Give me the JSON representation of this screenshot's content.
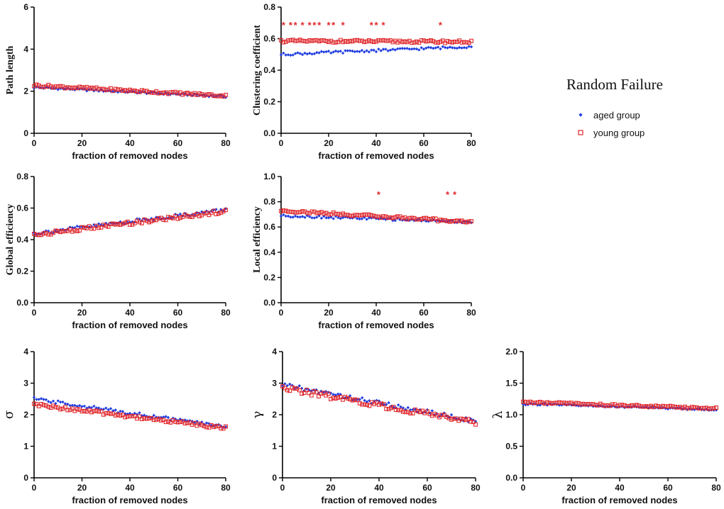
{
  "figure": {
    "legend": {
      "title": "Random Failure",
      "entries": [
        {
          "label": "aged group",
          "color": "#1f3de0",
          "marker": "diamond"
        },
        {
          "label": "young group",
          "color": "#e0262a",
          "marker": "square"
        }
      ]
    }
  },
  "chart_data": [
    {
      "type": "scatter",
      "id": "path-length",
      "title": "",
      "xlabel": "fraction of removed nodes",
      "ylabel": "Path length",
      "xlim": [
        0,
        80
      ],
      "ylim": [
        0,
        6
      ],
      "xticks": [
        0,
        20,
        40,
        60,
        80
      ],
      "yticks": [
        0,
        2,
        4,
        6
      ],
      "series": [
        {
          "name": "aged group",
          "start": 2.18,
          "end": 1.75,
          "noise": 0.05
        },
        {
          "name": "young group",
          "start": 2.28,
          "end": 1.78,
          "noise": 0.06
        }
      ],
      "significance_x": []
    },
    {
      "type": "scatter",
      "id": "clustering-coefficient",
      "title": "",
      "xlabel": "fraction of removed nodes",
      "ylabel": "Clustering coefficient",
      "xlim": [
        0,
        80
      ],
      "ylim": [
        0,
        0.8
      ],
      "xticks": [
        0,
        20,
        40,
        60,
        80
      ],
      "yticks": [
        0.0,
        0.2,
        0.4,
        0.6,
        0.8
      ],
      "series": [
        {
          "name": "aged group",
          "start": 0.5,
          "end": 0.55,
          "noise": 0.008
        },
        {
          "name": "young group",
          "start": 0.585,
          "end": 0.58,
          "noise": 0.008
        }
      ],
      "significance_x": [
        1,
        4,
        6,
        9,
        12,
        14,
        16,
        20,
        22,
        26,
        38,
        40,
        43,
        67
      ]
    },
    {
      "type": "scatter",
      "id": "global-efficiency",
      "title": "",
      "xlabel": "fraction of removed nodes",
      "ylabel": "Global efficiency",
      "xlim": [
        0,
        80
      ],
      "ylim": [
        0,
        0.8
      ],
      "xticks": [
        0,
        20,
        40,
        60,
        80
      ],
      "yticks": [
        0.0,
        0.2,
        0.4,
        0.6,
        0.8
      ],
      "series": [
        {
          "name": "aged group",
          "start": 0.44,
          "end": 0.59,
          "noise": 0.012
        },
        {
          "name": "young group",
          "start": 0.43,
          "end": 0.58,
          "noise": 0.012
        }
      ],
      "significance_x": []
    },
    {
      "type": "scatter",
      "id": "local-efficiency",
      "title": "",
      "xlabel": "fraction of removed nodes",
      "ylabel": "Local efficiency",
      "xlim": [
        0,
        80
      ],
      "ylim": [
        0,
        1.0
      ],
      "xticks": [
        0,
        20,
        40,
        60,
        80
      ],
      "yticks": [
        0.0,
        0.2,
        0.4,
        0.6,
        0.8,
        1.0
      ],
      "series": [
        {
          "name": "aged group",
          "start": 0.69,
          "end": 0.64,
          "noise": 0.01
        },
        {
          "name": "young group",
          "start": 0.73,
          "end": 0.64,
          "noise": 0.01
        }
      ],
      "significance_x": [
        41,
        70,
        73
      ]
    },
    {
      "type": "scatter",
      "id": "sigma",
      "title": "",
      "xlabel": "fraction of removed nodes",
      "ylabel": "σ",
      "xlim": [
        0,
        80
      ],
      "ylim": [
        0,
        4
      ],
      "xticks": [
        0,
        20,
        40,
        60,
        80
      ],
      "yticks": [
        0,
        1,
        2,
        3,
        4
      ],
      "series": [
        {
          "name": "aged group",
          "start": 2.5,
          "end": 1.62,
          "noise": 0.05
        },
        {
          "name": "young group",
          "start": 2.32,
          "end": 1.58,
          "noise": 0.05
        }
      ],
      "significance_x": []
    },
    {
      "type": "scatter",
      "id": "gamma",
      "title": "",
      "xlabel": "fraction of removed nodes",
      "ylabel": "γ",
      "xlim": [
        0,
        80
      ],
      "ylim": [
        0,
        4
      ],
      "xticks": [
        0,
        20,
        40,
        60,
        80
      ],
      "yticks": [
        0,
        1,
        2,
        3,
        4
      ],
      "series": [
        {
          "name": "aged group",
          "start": 2.95,
          "end": 1.8,
          "noise": 0.07
        },
        {
          "name": "young group",
          "start": 2.85,
          "end": 1.75,
          "noise": 0.08
        }
      ],
      "significance_x": []
    },
    {
      "type": "scatter",
      "id": "lambda",
      "title": "",
      "xlabel": "fraction of removed nodes",
      "ylabel": "λ",
      "xlim": [
        0,
        80
      ],
      "ylim": [
        0,
        2.0
      ],
      "xticks": [
        0,
        20,
        40,
        60,
        80
      ],
      "yticks": [
        0.0,
        0.5,
        1.0,
        1.5,
        2.0
      ],
      "series": [
        {
          "name": "aged group",
          "start": 1.17,
          "end": 1.08,
          "noise": 0.015
        },
        {
          "name": "young group",
          "start": 1.2,
          "end": 1.1,
          "noise": 0.015
        }
      ],
      "significance_x": []
    }
  ]
}
